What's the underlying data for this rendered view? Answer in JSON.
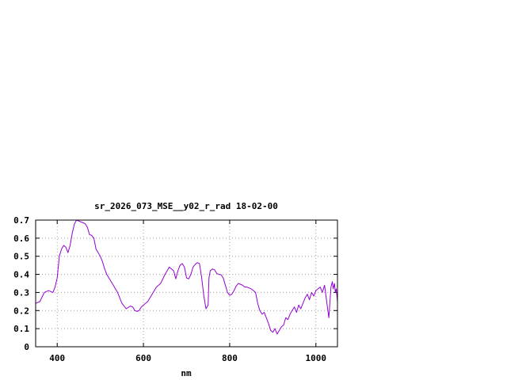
{
  "chart_data": {
    "type": "line",
    "title": "sr_2026_073_MSE__y02_r_rad 18-02-00",
    "xlabel": "nm",
    "ylabel": "",
    "xlim": [
      350,
      1050
    ],
    "ylim": [
      0,
      0.7
    ],
    "x_ticks": [
      400,
      600,
      800,
      1000
    ],
    "y_ticks": [
      0,
      0.1,
      0.2,
      0.3,
      0.4,
      0.5,
      0.6,
      0.7
    ],
    "x_tick_labels": [
      "400",
      "600",
      "800",
      "1000"
    ],
    "y_tick_labels": [
      "0",
      "0.1",
      "0.2",
      "0.3",
      "0.4",
      "0.5",
      "0.6",
      "0.7"
    ],
    "grid": true,
    "line_color": "#9400d3",
    "series": [
      {
        "x": [
          350,
          360,
          370,
          380,
          390,
          395,
          400,
          405,
          410,
          415,
          420,
          425,
          430,
          435,
          440,
          445,
          450,
          455,
          460,
          465,
          470,
          475,
          480,
          485,
          490,
          495,
          500,
          505,
          510,
          515,
          520,
          525,
          530,
          540,
          550,
          560,
          570,
          575,
          580,
          585,
          590,
          595,
          600,
          610,
          620,
          630,
          640,
          650,
          660,
          670,
          675,
          680,
          685,
          690,
          695,
          700,
          705,
          710,
          715,
          720,
          725,
          730,
          735,
          740,
          745,
          750,
          752,
          755,
          760,
          765,
          770,
          775,
          780,
          785,
          790,
          795,
          800,
          805,
          810,
          815,
          820,
          825,
          830,
          835,
          840,
          845,
          850,
          855,
          860,
          865,
          870,
          875,
          880,
          885,
          890,
          895,
          900,
          905,
          910,
          915,
          920,
          925,
          930,
          935,
          940,
          945,
          950,
          955,
          960,
          965,
          970,
          975,
          980,
          985,
          990,
          995,
          1000,
          1005,
          1010,
          1015,
          1020,
          1025,
          1030,
          1035,
          1038,
          1040,
          1043,
          1045,
          1047,
          1050
        ],
        "y": [
          0.24,
          0.25,
          0.3,
          0.31,
          0.3,
          0.33,
          0.38,
          0.5,
          0.54,
          0.56,
          0.55,
          0.52,
          0.56,
          0.63,
          0.68,
          0.7,
          0.695,
          0.69,
          0.685,
          0.68,
          0.66,
          0.62,
          0.615,
          0.6,
          0.54,
          0.52,
          0.5,
          0.47,
          0.43,
          0.4,
          0.38,
          0.36,
          0.34,
          0.3,
          0.24,
          0.21,
          0.225,
          0.22,
          0.2,
          0.195,
          0.2,
          0.22,
          0.23,
          0.25,
          0.29,
          0.33,
          0.35,
          0.4,
          0.44,
          0.42,
          0.375,
          0.42,
          0.45,
          0.46,
          0.44,
          0.38,
          0.375,
          0.4,
          0.44,
          0.455,
          0.465,
          0.46,
          0.38,
          0.28,
          0.21,
          0.23,
          0.38,
          0.42,
          0.43,
          0.425,
          0.405,
          0.4,
          0.398,
          0.38,
          0.34,
          0.3,
          0.285,
          0.29,
          0.31,
          0.335,
          0.35,
          0.345,
          0.34,
          0.33,
          0.33,
          0.325,
          0.32,
          0.31,
          0.3,
          0.24,
          0.2,
          0.18,
          0.19,
          0.16,
          0.13,
          0.09,
          0.08,
          0.1,
          0.07,
          0.09,
          0.11,
          0.12,
          0.16,
          0.15,
          0.18,
          0.2,
          0.22,
          0.19,
          0.23,
          0.21,
          0.24,
          0.27,
          0.29,
          0.26,
          0.3,
          0.28,
          0.31,
          0.32,
          0.33,
          0.3,
          0.34,
          0.25,
          0.16,
          0.33,
          0.36,
          0.32,
          0.35,
          0.3,
          0.32,
          0.25
        ]
      }
    ]
  }
}
